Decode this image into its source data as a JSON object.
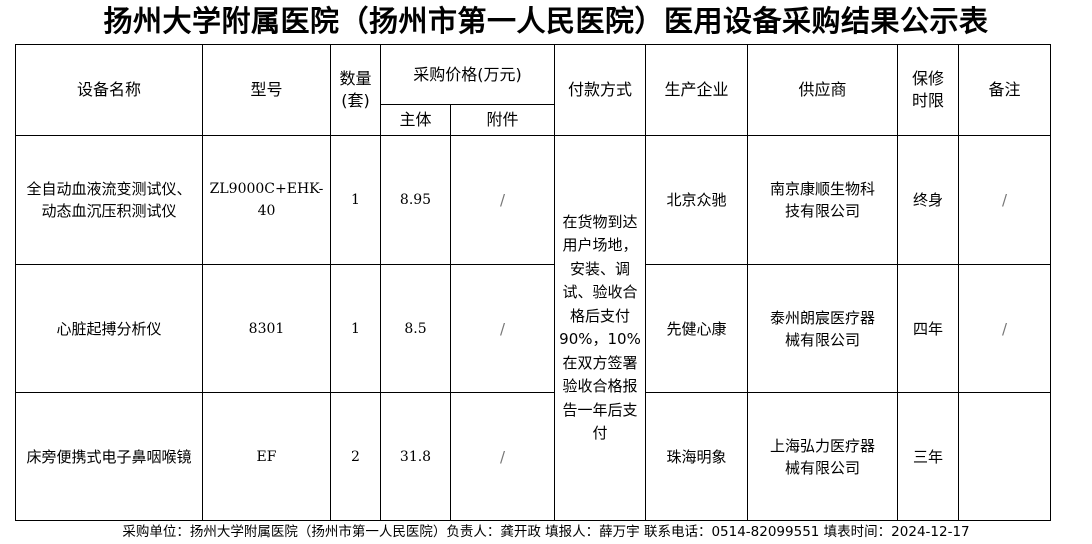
{
  "title": "扬州大学附属医院（扬州市第一人民医院）医用设备采购结果公示表",
  "headers": {
    "name": "设备名称",
    "model": "型号",
    "qty": "数量(套)",
    "price": "采购价格(万元)",
    "main": "主体",
    "accessory": "附件",
    "payment": "付款方式",
    "manufacturer": "生产企业",
    "supplier": "供应商",
    "warranty": "保修时限",
    "remark": "备注"
  },
  "payment_terms": "在货物到达用户场地，安装、调试、验收合格后支付90%，10%在双方签署验收合格报告一年后支付",
  "rows": [
    {
      "name": "全自动血液流变测试仪、动态血沉压积测试仪",
      "model": "ZL9000C+EHK-40",
      "qty": "1",
      "main": "8.95",
      "accessory": "/",
      "manufacturer": "北京众驰",
      "supplier": "南京康顺生物科技有限公司",
      "warranty": "终身",
      "remark": "/"
    },
    {
      "name": "心脏起搏分析仪",
      "model": "8301",
      "qty": "1",
      "main": "8.5",
      "accessory": "/",
      "manufacturer": "先健心康",
      "supplier": "泰州朗宸医疗器械有限公司",
      "warranty": "四年",
      "remark": "/"
    },
    {
      "name": "床旁便携式电子鼻咽喉镜",
      "model": "EF",
      "qty": "2",
      "main": "31.8",
      "accessory": "/",
      "manufacturer": "珠海明象",
      "supplier": "上海弘力医疗器械有限公司",
      "warranty": "三年",
      "remark": ""
    }
  ],
  "footer": "采购单位：扬州大学附属医院（扬州市第一人民医院）负责人：龚开政 填报人：薛万宇 联系电话：0514-82099551 填表时间：2024-12-17"
}
